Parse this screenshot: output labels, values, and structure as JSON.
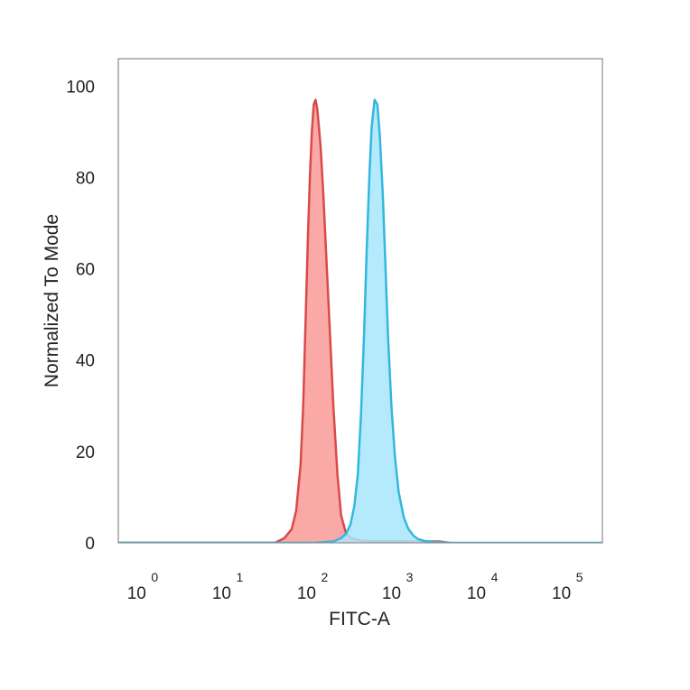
{
  "chart_data": {
    "type": "area",
    "xlabel": "FITC-A",
    "ylabel": "Normalized To Mode",
    "x_scale": "log",
    "xlim": [
      0.5,
      250000
    ],
    "ylim": [
      0,
      106
    ],
    "x_ticks": [
      {
        "base": "10",
        "exp": "0",
        "value": 1
      },
      {
        "base": "10",
        "exp": "1",
        "value": 10
      },
      {
        "base": "10",
        "exp": "2",
        "value": 100
      },
      {
        "base": "10",
        "exp": "3",
        "value": 1000
      },
      {
        "base": "10",
        "exp": "4",
        "value": 10000
      },
      {
        "base": "10",
        "exp": "5",
        "value": 100000
      }
    ],
    "y_ticks": [
      {
        "label": "0",
        "value": 0
      },
      {
        "label": "20",
        "value": 20
      },
      {
        "label": "40",
        "value": 40
      },
      {
        "label": "60",
        "value": 60
      },
      {
        "label": "80",
        "value": 80
      },
      {
        "label": "100",
        "value": 100
      }
    ],
    "grid": false,
    "series": [
      {
        "color": "#d84a4a",
        "fill": "#f99a98",
        "x": [
          0.5,
          35,
          45,
          55,
          62,
          70,
          75,
          80,
          85,
          90,
          95,
          100,
          105,
          110,
          120,
          130,
          140,
          155,
          170,
          190,
          210,
          240,
          280,
          350,
          500,
          1000,
          2000,
          3000,
          4000
        ],
        "y": [
          0,
          0,
          1,
          3,
          7,
          17,
          30,
          48,
          66,
          80,
          90,
          96,
          97,
          95,
          87,
          76,
          63,
          46,
          30,
          15,
          6,
          2,
          1,
          0.5,
          0.3,
          0.3,
          0.3,
          0.3,
          0
        ]
      },
      {
        "color": "#33b7de",
        "fill": "#a8e6fb",
        "x": [
          0.5,
          100,
          170,
          210,
          240,
          270,
          300,
          330,
          360,
          390,
          420,
          450,
          480,
          520,
          560,
          600,
          650,
          700,
          750,
          820,
          900,
          1000,
          1150,
          1300,
          1500,
          1700,
          2000,
          2500,
          3000,
          4000,
          250000
        ],
        "y": [
          0,
          0,
          0.3,
          1,
          2,
          4,
          8,
          15,
          28,
          45,
          64,
          80,
          91,
          97,
          96,
          89,
          76,
          60,
          45,
          30,
          19,
          11,
          5.5,
          3,
          1.5,
          0.8,
          0.4,
          0.2,
          0.1,
          0,
          0
        ]
      }
    ]
  }
}
